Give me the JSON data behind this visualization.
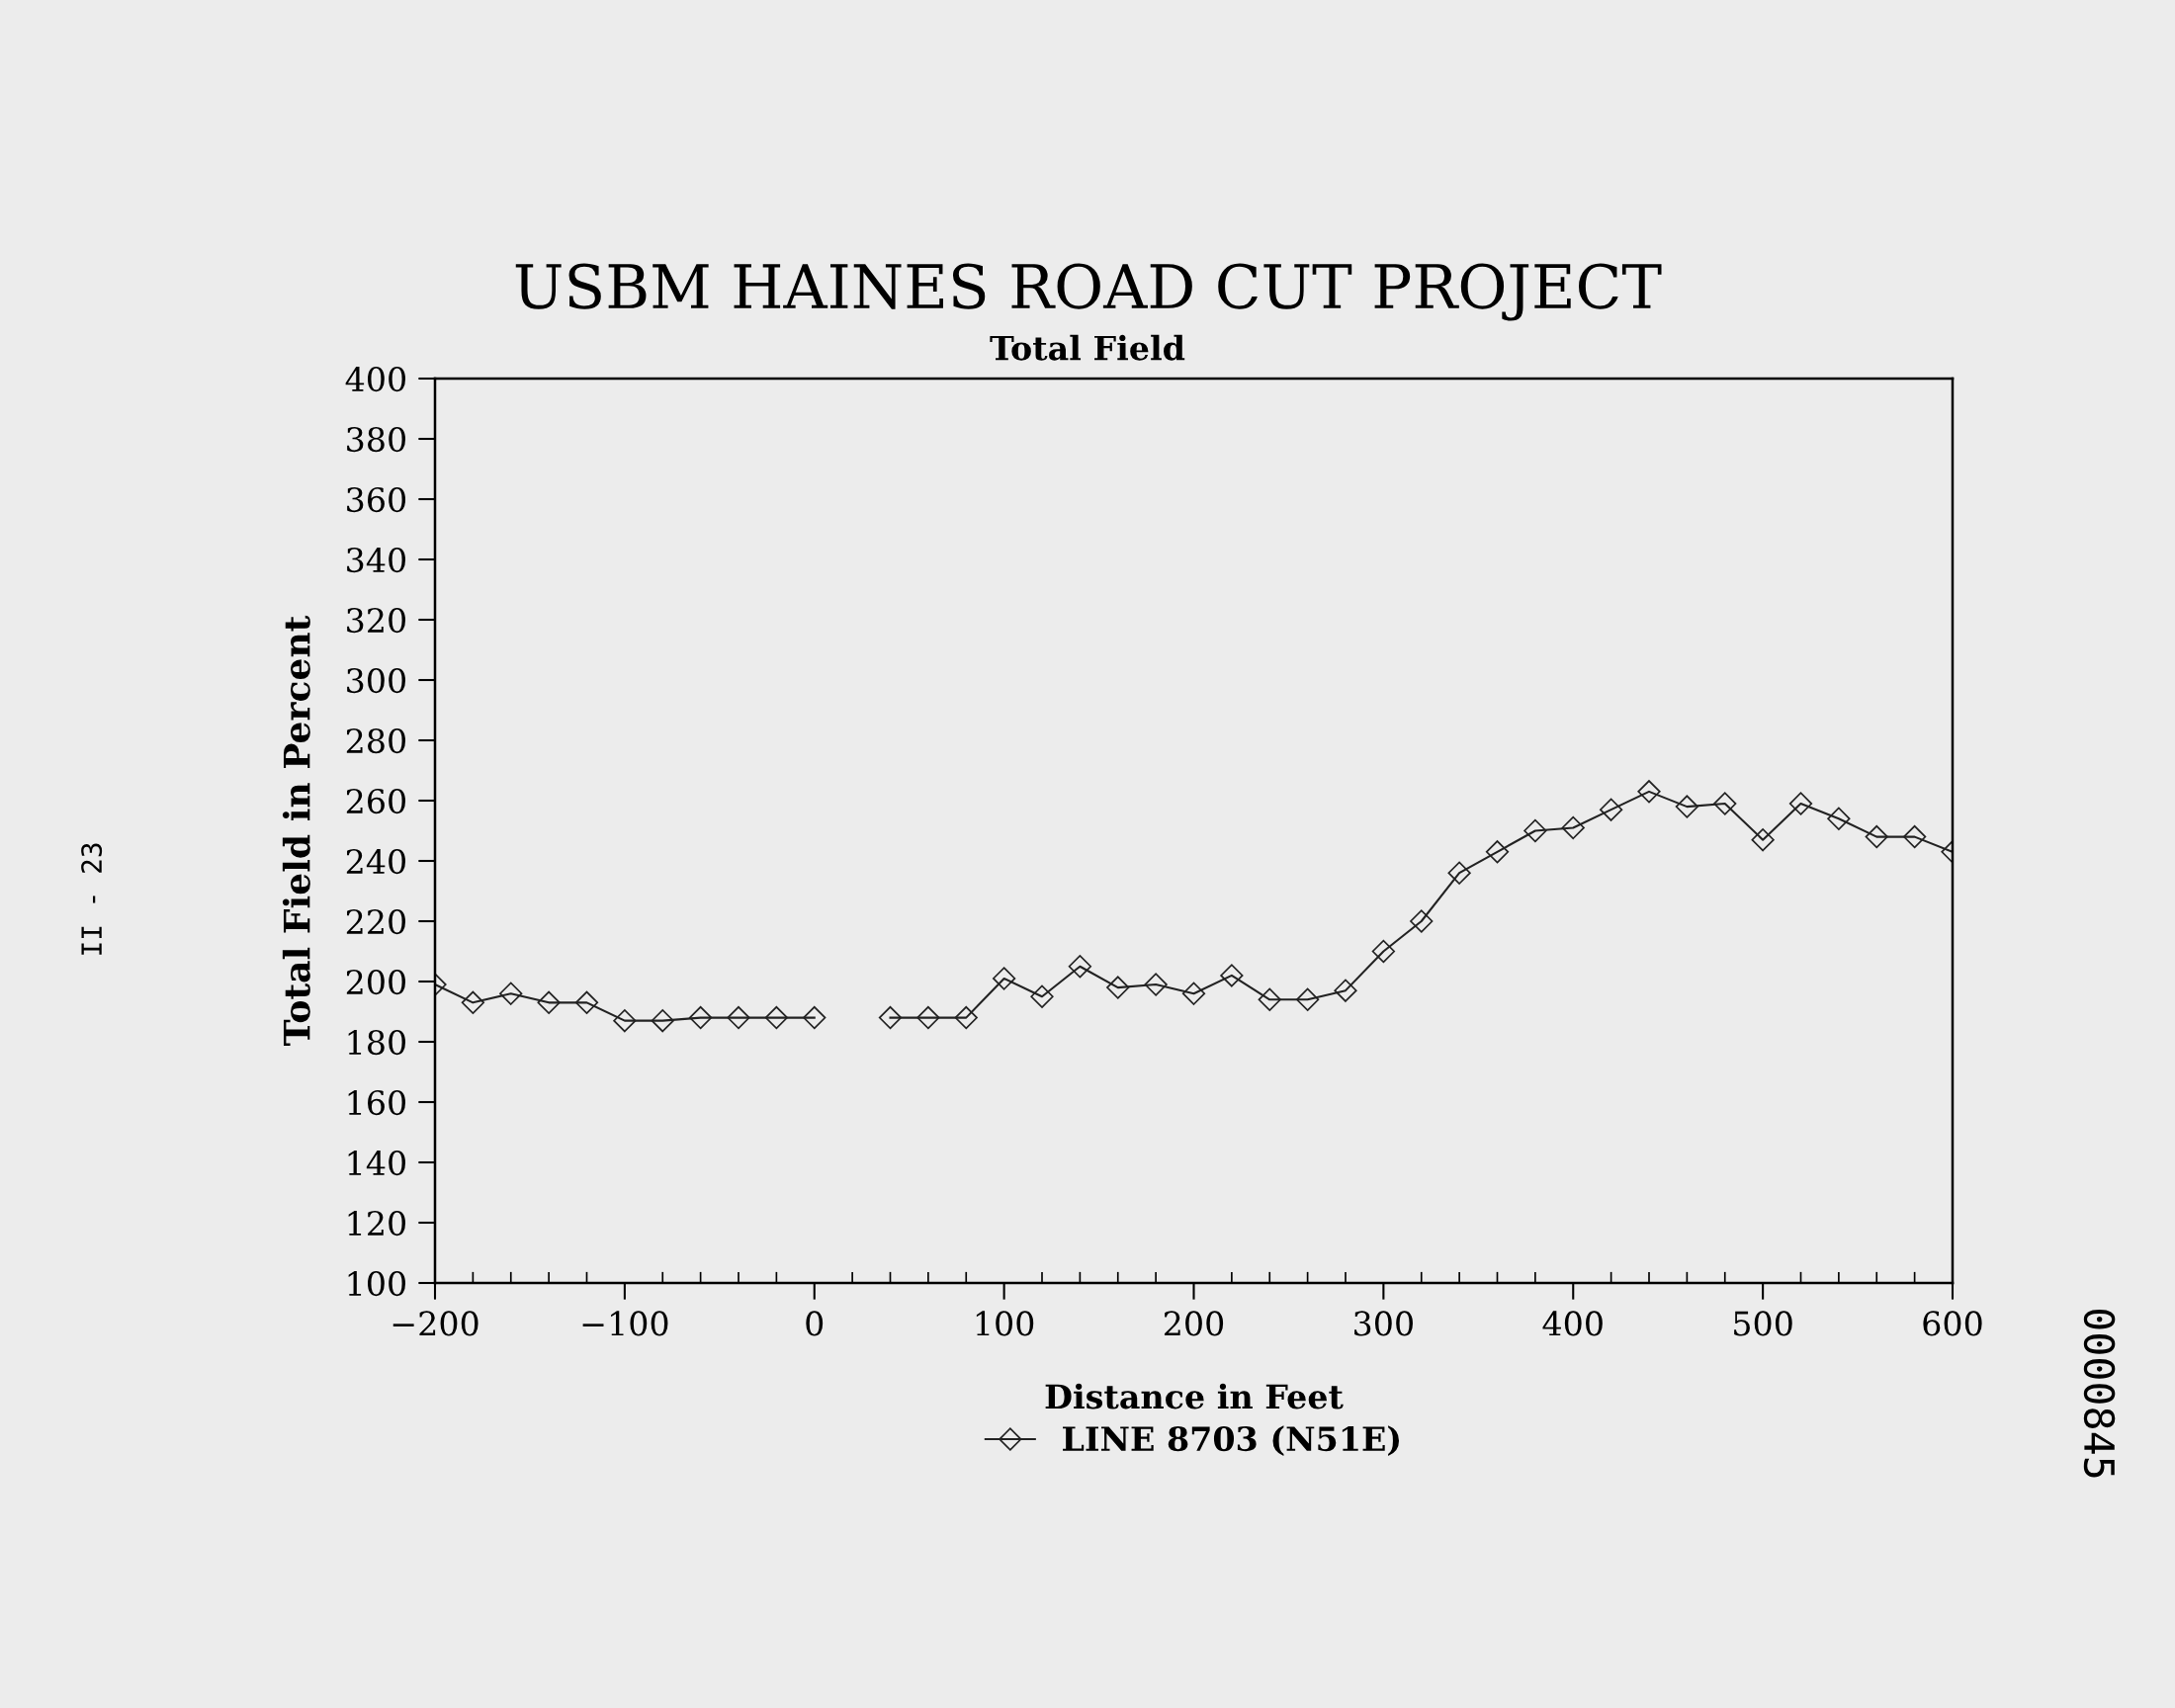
{
  "chart_data": {
    "type": "line",
    "title": "USBM HAINES ROAD CUT PROJECT",
    "subtitle": "Total Field",
    "xlabel": "Distance in Feet",
    "ylabel": "Total Field in Percent",
    "x": [
      -200,
      -180,
      -160,
      -140,
      -120,
      -100,
      -80,
      -60,
      -40,
      -20,
      0,
      20,
      40,
      60,
      80,
      100,
      120,
      140,
      160,
      180,
      200,
      220,
      240,
      260,
      280,
      300,
      320,
      340,
      360,
      380,
      400,
      420,
      440,
      460,
      480,
      500,
      520,
      540,
      560,
      580,
      600
    ],
    "series": [
      {
        "name": "LINE 8703 (N51E)",
        "color": "#222222",
        "values": [
          199,
          193,
          196,
          193,
          193,
          187,
          187,
          188,
          188,
          188,
          188,
          null,
          188,
          188,
          188,
          201,
          195,
          205,
          198,
          199,
          196,
          202,
          194,
          194,
          197,
          210,
          220,
          236,
          243,
          250,
          251,
          257,
          263,
          258,
          259,
          247,
          259,
          254,
          248,
          248,
          243
        ]
      }
    ],
    "xlim": [
      -200,
      600
    ],
    "ylim": [
      100,
      400
    ],
    "xticks": [
      {
        "value": -200,
        "label": "−200"
      },
      {
        "value": -180,
        "label": null
      },
      {
        "value": -160,
        "label": null
      },
      {
        "value": -140,
        "label": null
      },
      {
        "value": -120,
        "label": null
      },
      {
        "value": -100,
        "label": "−100"
      },
      {
        "value": -80,
        "label": null
      },
      {
        "value": -60,
        "label": null
      },
      {
        "value": -40,
        "label": null
      },
      {
        "value": -20,
        "label": null
      },
      0,
      {
        "value": 20,
        "label": null
      },
      {
        "value": 40,
        "label": null
      },
      {
        "value": 60,
        "label": null
      },
      {
        "value": 80,
        "label": null
      },
      100,
      {
        "value": 120,
        "label": null
      },
      {
        "value": 140,
        "label": null
      },
      {
        "value": 160,
        "label": null
      },
      {
        "value": 180,
        "label": null
      },
      200,
      {
        "value": 220,
        "label": null
      },
      {
        "value": 240,
        "label": null
      },
      {
        "value": 260,
        "label": null
      },
      {
        "value": 280,
        "label": null
      },
      300,
      {
        "value": 320,
        "label": null
      },
      {
        "value": 340,
        "label": null
      },
      {
        "value": 360,
        "label": null
      },
      {
        "value": 380,
        "label": null
      },
      400,
      {
        "value": 420,
        "label": null
      },
      {
        "value": 440,
        "label": null
      },
      {
        "value": 460,
        "label": null
      },
      {
        "value": 480,
        "label": null
      },
      500,
      {
        "value": 520,
        "label": null
      },
      {
        "value": 540,
        "label": null
      },
      {
        "value": 560,
        "label": null
      },
      {
        "value": 580,
        "label": null
      },
      600
    ],
    "yticks": [
      100,
      120,
      140,
      160,
      180,
      200,
      220,
      240,
      260,
      280,
      300,
      320,
      340,
      360,
      380,
      400
    ],
    "marker": "diamond",
    "line_style": "solid",
    "grid": false,
    "legend": "bottom",
    "annotations": [
      "II - 23",
      "0000845"
    ]
  }
}
